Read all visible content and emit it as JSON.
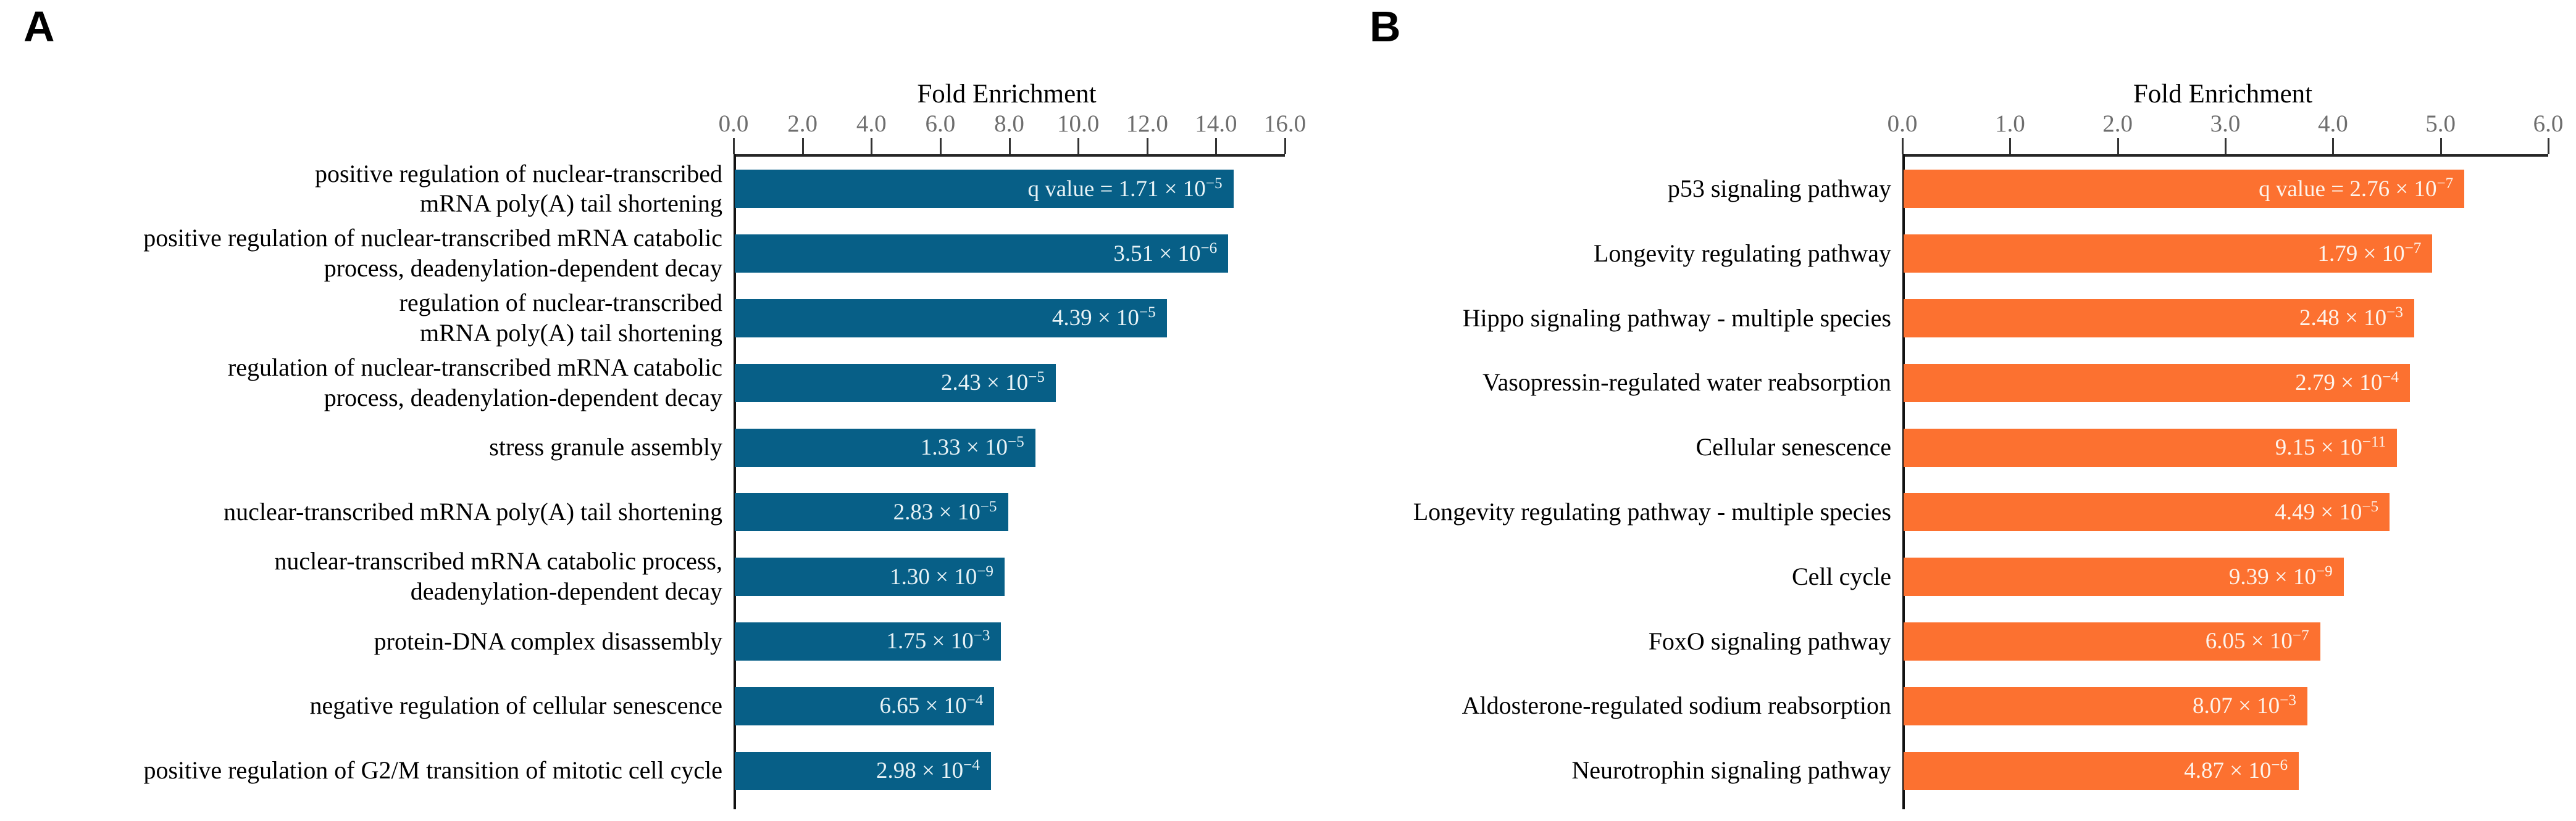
{
  "chart_data": {
    "type": "bar",
    "orientation": "horizontal",
    "background": "#ffffff",
    "panels": [
      {
        "letter": "A",
        "axis_title": "Fold Enrichment",
        "axis_position": "top",
        "xlim": [
          0.0,
          16.0
        ],
        "xticks": [
          0.0,
          2.0,
          4.0,
          6.0,
          8.0,
          10.0,
          12.0,
          14.0,
          16.0
        ],
        "xtick_labels": [
          "0.0",
          "2.0",
          "4.0",
          "6.0",
          "8.0",
          "10.0",
          "12.0",
          "14.0",
          "16.0"
        ],
        "bar_color": "#075f87",
        "value_text_color": "#e8f3f6",
        "rows": [
          {
            "category": "positive regulation of nuclear-transcribed mRNA poly(A) tail shortening",
            "category_lines": [
              "positive regulation of nuclear-transcribed",
              "mRNA poly(A) tail shortening"
            ],
            "fold_enrichment": 14.6,
            "q_main": "q value = 1.71 × 10",
            "q_exp": "−5"
          },
          {
            "category": "positive regulation of nuclear-transcribed mRNA catabolic process, deadenylation-dependent decay",
            "category_lines": [
              "positive regulation of nuclear-transcribed mRNA catabolic",
              "process, deadenylation-dependent decay"
            ],
            "fold_enrichment": 14.45,
            "q_main": "3.51 × 10",
            "q_exp": "−6"
          },
          {
            "category": "regulation of nuclear-transcribed mRNA poly(A) tail shortening",
            "category_lines": [
              "regulation of nuclear-transcribed",
              "mRNA poly(A) tail shortening"
            ],
            "fold_enrichment": 12.65,
            "q_main": "4.39 × 10",
            "q_exp": "−5"
          },
          {
            "category": "regulation of nuclear-transcribed mRNA catabolic process, deadenylation-dependent decay",
            "category_lines": [
              "regulation of nuclear-transcribed mRNA catabolic",
              "process, deadenylation-dependent decay"
            ],
            "fold_enrichment": 9.4,
            "q_main": "2.43 × 10",
            "q_exp": "−5"
          },
          {
            "category": "stress granule assembly",
            "category_lines": [
              "stress granule assembly"
            ],
            "fold_enrichment": 8.8,
            "q_main": "1.33 × 10",
            "q_exp": "−5"
          },
          {
            "category": "nuclear-transcribed mRNA poly(A) tail shortening",
            "category_lines": [
              "nuclear-transcribed mRNA poly(A) tail shortening"
            ],
            "fold_enrichment": 8.0,
            "q_main": "2.83 × 10",
            "q_exp": "−5"
          },
          {
            "category": "nuclear-transcribed mRNA catabolic process, deadenylation-dependent decay",
            "category_lines": [
              "nuclear-transcribed mRNA catabolic process,",
              "deadenylation-dependent decay"
            ],
            "fold_enrichment": 7.9,
            "q_main": "1.30 × 10",
            "q_exp": "−9"
          },
          {
            "category": "protein-DNA complex disassembly",
            "category_lines": [
              "protein-DNA complex disassembly"
            ],
            "fold_enrichment": 7.8,
            "q_main": "1.75 × 10",
            "q_exp": "−3"
          },
          {
            "category": "negative regulation of cellular senescence",
            "category_lines": [
              "negative regulation of cellular senescence"
            ],
            "fold_enrichment": 7.6,
            "q_main": "6.65 × 10",
            "q_exp": "−4"
          },
          {
            "category": "positive regulation of G2/M transition of mitotic cell cycle",
            "category_lines": [
              "positive regulation of G2/M transition of mitotic cell cycle"
            ],
            "fold_enrichment": 7.5,
            "q_main": "2.98 × 10",
            "q_exp": "−4"
          }
        ]
      },
      {
        "letter": "B",
        "axis_title": "Fold Enrichment",
        "axis_position": "top",
        "xlim": [
          0.0,
          6.0
        ],
        "xticks": [
          0.0,
          1.0,
          2.0,
          3.0,
          4.0,
          5.0,
          6.0
        ],
        "xtick_labels": [
          "0.0",
          "1.0",
          "2.0",
          "3.0",
          "4.0",
          "5.0",
          "6.0"
        ],
        "bar_color": "#fc7130",
        "value_text_color": "#fdf4ec",
        "rows": [
          {
            "category": "p53 signaling pathway",
            "category_lines": [
              "p53 signaling pathway"
            ],
            "fold_enrichment": 5.25,
            "q_main": "q value = 2.76 × 10",
            "q_exp": "−7"
          },
          {
            "category": "Longevity regulating pathway",
            "category_lines": [
              "Longevity regulating pathway"
            ],
            "fold_enrichment": 4.95,
            "q_main": "1.79 × 10",
            "q_exp": "−7"
          },
          {
            "category": "Hippo signaling pathway - multiple species",
            "category_lines": [
              "Hippo signaling pathway - multiple species"
            ],
            "fold_enrichment": 4.78,
            "q_main": "2.48 × 10",
            "q_exp": "−3"
          },
          {
            "category": "Vasopressin-regulated water reabsorption",
            "category_lines": [
              "Vasopressin-regulated water reabsorption"
            ],
            "fold_enrichment": 4.74,
            "q_main": "2.79 × 10",
            "q_exp": "−4"
          },
          {
            "category": "Cellular senescence",
            "category_lines": [
              "Cellular senescence"
            ],
            "fold_enrichment": 4.62,
            "q_main": "9.15 × 10",
            "q_exp": "−11"
          },
          {
            "category": "Longevity regulating pathway - multiple species",
            "category_lines": [
              "Longevity regulating pathway - multiple species"
            ],
            "fold_enrichment": 4.55,
            "q_main": "4.49 × 10",
            "q_exp": "−5"
          },
          {
            "category": "Cell cycle",
            "category_lines": [
              "Cell cycle"
            ],
            "fold_enrichment": 4.12,
            "q_main": "9.39 × 10",
            "q_exp": "−9"
          },
          {
            "category": "FoxO signaling pathway",
            "category_lines": [
              "FoxO signaling pathway"
            ],
            "fold_enrichment": 3.9,
            "q_main": "6.05 × 10",
            "q_exp": "−7"
          },
          {
            "category": "Aldosterone-regulated sodium reabsorption",
            "category_lines": [
              "Aldosterone-regulated sodium reabsorption"
            ],
            "fold_enrichment": 3.78,
            "q_main": "8.07 × 10",
            "q_exp": "−3"
          },
          {
            "category": "Neurotrophin signaling pathway",
            "category_lines": [
              "Neurotrophin signaling pathway"
            ],
            "fold_enrichment": 3.7,
            "q_main": "4.87 × 10",
            "q_exp": "−6"
          }
        ]
      }
    ]
  }
}
